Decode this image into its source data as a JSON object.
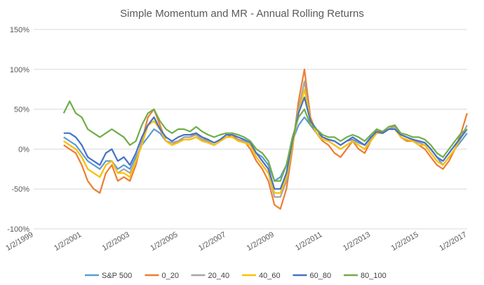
{
  "chart_data": {
    "type": "line",
    "title": "Simple Momentum and MR - Annual Rolling Returns",
    "xlabel": "",
    "ylabel": "",
    "x_range": [
      "1999-01-02",
      "2017-01-02"
    ],
    "x_ticks": [
      "1/2/1999",
      "1/2/2001",
      "1/2/2003",
      "1/2/2005",
      "1/2/2007",
      "1/2/2009",
      "1/2/2011",
      "1/2/2013",
      "1/2/2015",
      "1/2/2017"
    ],
    "ylim": [
      -100,
      150
    ],
    "y_ticks": [
      "-100%",
      "-50%",
      "0%",
      "50%",
      "100%",
      "150%"
    ],
    "grid": "horizontal",
    "legend_position": "bottom",
    "x": [
      "2000-04-01",
      "2000-07-01",
      "2000-10-01",
      "2001-01-01",
      "2001-04-01",
      "2001-07-01",
      "2001-10-01",
      "2002-01-01",
      "2002-04-01",
      "2002-07-01",
      "2002-10-01",
      "2003-01-01",
      "2003-04-01",
      "2003-07-01",
      "2003-10-01",
      "2004-01-01",
      "2004-04-01",
      "2004-07-01",
      "2004-10-01",
      "2005-01-01",
      "2005-04-01",
      "2005-07-01",
      "2005-10-01",
      "2006-01-01",
      "2006-04-01",
      "2006-07-01",
      "2006-10-01",
      "2007-01-01",
      "2007-04-01",
      "2007-07-01",
      "2007-10-01",
      "2008-01-01",
      "2008-04-01",
      "2008-07-01",
      "2008-10-01",
      "2009-01-01",
      "2009-04-01",
      "2009-07-01",
      "2009-10-01",
      "2010-01-01",
      "2010-04-01",
      "2010-07-01",
      "2010-10-01",
      "2011-01-01",
      "2011-04-01",
      "2011-07-01",
      "2011-10-01",
      "2012-01-01",
      "2012-04-01",
      "2012-07-01",
      "2012-10-01",
      "2013-01-01",
      "2013-04-01",
      "2013-07-01",
      "2013-10-01",
      "2014-01-01",
      "2014-04-01",
      "2014-07-01",
      "2014-10-01",
      "2015-01-01",
      "2015-04-01",
      "2015-07-01",
      "2015-10-01",
      "2016-01-01",
      "2016-04-01",
      "2016-07-01",
      "2016-10-01",
      "2017-01-01"
    ],
    "series": [
      {
        "name": "S&P 500",
        "color": "#5B9BD5",
        "values": [
          15,
          10,
          5,
          -5,
          -15,
          -20,
          -25,
          -15,
          -15,
          -25,
          -20,
          -25,
          -10,
          5,
          15,
          25,
          20,
          10,
          8,
          10,
          12,
          12,
          15,
          10,
          8,
          5,
          10,
          15,
          15,
          12,
          10,
          5,
          -5,
          -10,
          -20,
          -40,
          -35,
          -20,
          10,
          30,
          40,
          30,
          20,
          15,
          12,
          10,
          5,
          10,
          12,
          8,
          5,
          15,
          20,
          20,
          25,
          25,
          18,
          15,
          12,
          10,
          8,
          0,
          -10,
          -20,
          -10,
          0,
          10,
          20
        ]
      },
      {
        "name": "0_20",
        "color": "#ED7D31",
        "values": [
          5,
          0,
          -5,
          -20,
          -40,
          -50,
          -55,
          -30,
          -20,
          -40,
          -35,
          -40,
          -20,
          10,
          40,
          50,
          30,
          10,
          5,
          10,
          15,
          15,
          20,
          15,
          10,
          5,
          10,
          15,
          18,
          12,
          10,
          0,
          -15,
          -25,
          -40,
          -70,
          -75,
          -50,
          0,
          60,
          100,
          40,
          20,
          10,
          5,
          -5,
          -10,
          0,
          10,
          0,
          -5,
          10,
          25,
          20,
          25,
          30,
          15,
          10,
          10,
          5,
          0,
          -10,
          -20,
          -25,
          -15,
          0,
          20,
          45
        ]
      },
      {
        "name": "20_40",
        "color": "#A5A5A5",
        "values": [
          10,
          5,
          0,
          -10,
          -25,
          -30,
          -35,
          -20,
          -15,
          -30,
          -25,
          -30,
          -15,
          10,
          30,
          40,
          25,
          10,
          8,
          10,
          15,
          15,
          18,
          12,
          10,
          5,
          10,
          15,
          15,
          12,
          10,
          5,
          -10,
          -20,
          -30,
          -60,
          -60,
          -40,
          5,
          50,
          85,
          35,
          20,
          12,
          10,
          5,
          0,
          5,
          10,
          5,
          0,
          12,
          22,
          20,
          25,
          28,
          15,
          12,
          10,
          8,
          5,
          -5,
          -15,
          -20,
          -10,
          0,
          15,
          30
        ]
      },
      {
        "name": "40_60",
        "color": "#FFC000",
        "values": [
          10,
          5,
          0,
          -10,
          -25,
          -30,
          -35,
          -20,
          -15,
          -30,
          -30,
          -35,
          -15,
          5,
          30,
          35,
          25,
          10,
          5,
          8,
          12,
          12,
          15,
          10,
          8,
          5,
          10,
          15,
          15,
          10,
          8,
          5,
          -10,
          -20,
          -30,
          -55,
          -55,
          -35,
          5,
          45,
          75,
          35,
          20,
          12,
          10,
          5,
          0,
          5,
          10,
          5,
          0,
          10,
          20,
          20,
          25,
          25,
          15,
          12,
          10,
          5,
          5,
          -5,
          -15,
          -20,
          -10,
          0,
          15,
          25
        ]
      },
      {
        "name": "60_80",
        "color": "#4472C4",
        "values": [
          20,
          20,
          15,
          5,
          -10,
          -15,
          -20,
          -5,
          0,
          -15,
          -10,
          -20,
          -5,
          15,
          30,
          40,
          25,
          15,
          10,
          15,
          18,
          18,
          20,
          15,
          12,
          8,
          12,
          18,
          18,
          15,
          12,
          8,
          -5,
          -15,
          -25,
          -50,
          -50,
          -30,
          10,
          45,
          65,
          35,
          25,
          15,
          12,
          10,
          5,
          10,
          15,
          10,
          5,
          15,
          22,
          20,
          25,
          25,
          18,
          15,
          12,
          10,
          8,
          0,
          -10,
          -15,
          -5,
          5,
          15,
          25
        ]
      },
      {
        "name": "80_100",
        "color": "#70AD47",
        "values": [
          45,
          60,
          45,
          40,
          25,
          20,
          15,
          20,
          25,
          20,
          15,
          5,
          10,
          30,
          45,
          50,
          35,
          25,
          20,
          25,
          25,
          22,
          28,
          22,
          18,
          15,
          18,
          20,
          20,
          18,
          15,
          10,
          0,
          -5,
          -15,
          -40,
          -40,
          -20,
          15,
          40,
          50,
          30,
          25,
          18,
          15,
          15,
          10,
          15,
          18,
          15,
          10,
          18,
          25,
          22,
          28,
          30,
          20,
          18,
          15,
          15,
          12,
          5,
          -5,
          -10,
          0,
          10,
          20,
          25
        ]
      }
    ]
  }
}
